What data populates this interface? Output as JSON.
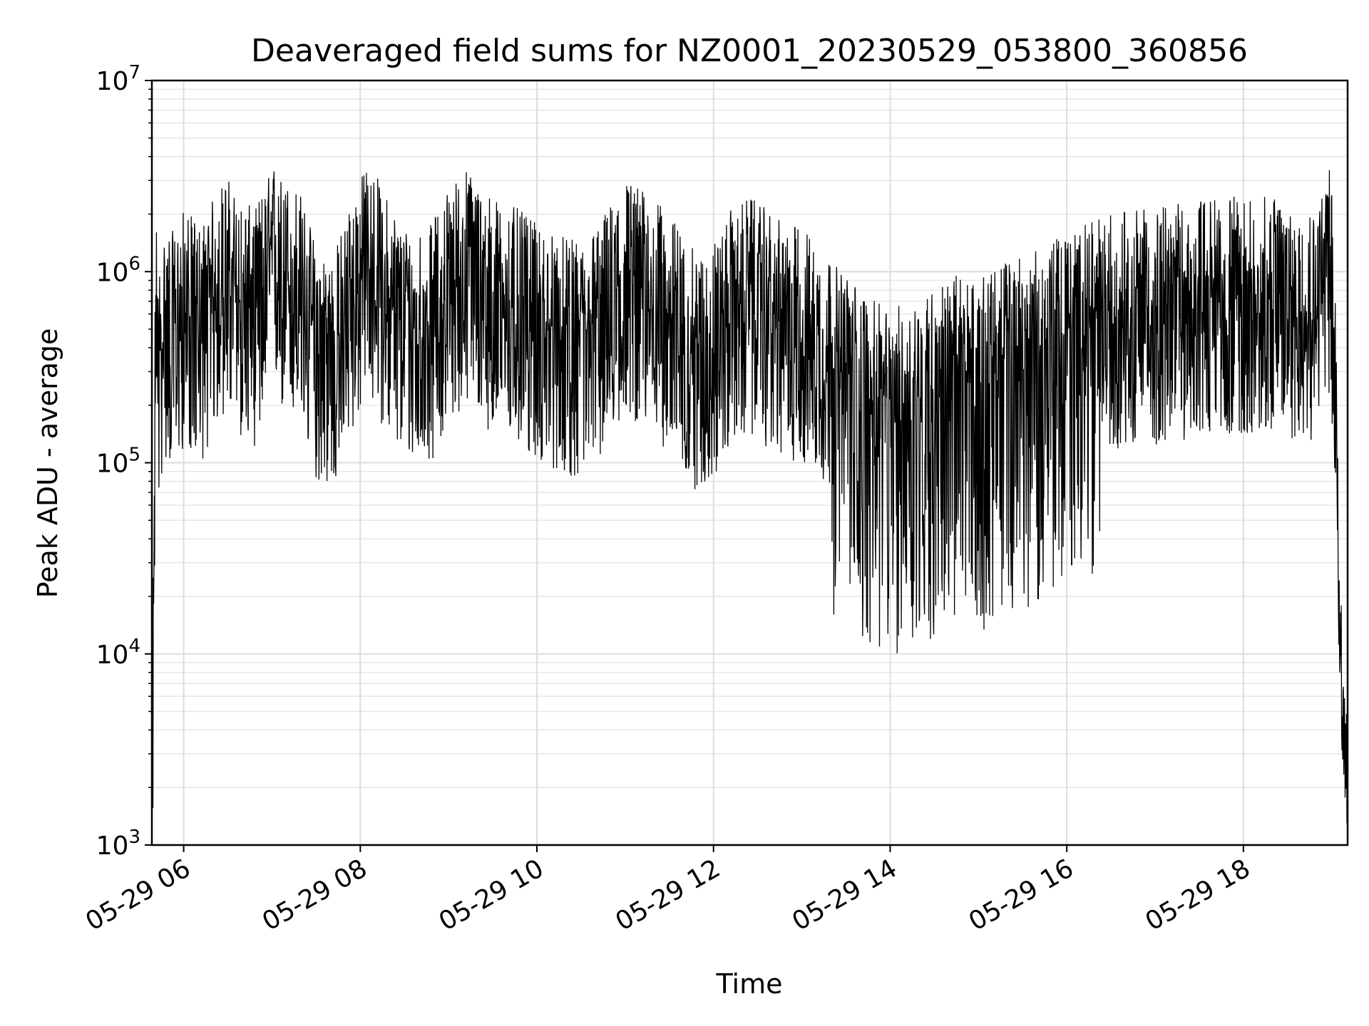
{
  "chart_data": {
    "type": "line",
    "title": "Deaveraged field sums for NZ0001_20230529_053800_360856",
    "xlabel": "Time",
    "ylabel": "Peak ADU - average",
    "x_tick_labels": [
      "05-29 06",
      "05-29 08",
      "05-29 10",
      "05-29 12",
      "05-29 14",
      "05-29 16",
      "05-29 18"
    ],
    "x_tick_hours": [
      6,
      8,
      10,
      12,
      14,
      16,
      18
    ],
    "xlim_hours": [
      5.64,
      19.18
    ],
    "y_scale": "log",
    "ylim": [
      1000,
      10000000
    ],
    "y_tick_labels": [
      {
        "base": "10",
        "exp": "3"
      },
      {
        "base": "10",
        "exp": "4"
      },
      {
        "base": "10",
        "exp": "5"
      },
      {
        "base": "10",
        "exp": "6"
      },
      {
        "base": "10",
        "exp": "7"
      }
    ],
    "grid": true,
    "line_color": "#000000",
    "series": [
      {
        "x_hours": [
          5.64,
          5.66,
          5.68,
          5.7,
          5.72,
          5.75,
          5.8,
          5.9,
          6.0,
          6.2,
          6.4,
          6.5,
          6.6,
          6.8,
          7.0,
          7.05,
          7.1,
          7.3,
          7.5,
          7.7,
          7.9,
          8.1,
          8.3,
          8.5,
          8.8,
          9.0,
          9.2,
          9.5,
          9.8,
          10.0,
          10.2,
          10.5,
          10.8,
          11.0,
          11.3,
          11.6,
          11.8,
          12.0,
          12.2,
          12.4,
          12.6,
          12.8,
          13.0,
          13.2,
          13.4,
          13.6,
          13.8,
          14.0,
          14.2,
          14.4,
          14.6,
          14.8,
          15.0,
          15.2,
          15.4,
          15.6,
          15.8,
          16.0,
          16.2,
          16.4,
          16.6,
          16.8,
          17.0,
          17.2,
          17.4,
          17.6,
          17.8,
          18.0,
          18.2,
          18.4,
          18.6,
          18.8,
          18.9,
          18.95,
          19.0,
          19.05,
          19.08,
          19.12,
          19.15,
          19.18
        ],
        "y": [
          2600,
          12000,
          450000,
          600000,
          300000,
          400000,
          500000,
          450000,
          600000,
          500000,
          800000,
          900000,
          700000,
          600000,
          1000000,
          1200000,
          900000,
          800000,
          400000,
          350000,
          700000,
          1100000,
          700000,
          500000,
          500000,
          800000,
          1000000,
          700000,
          600000,
          500000,
          450000,
          400000,
          600000,
          900000,
          700000,
          500000,
          350000,
          400000,
          600000,
          700000,
          600000,
          500000,
          500000,
          400000,
          300000,
          250000,
          200000,
          180000,
          200000,
          220000,
          250000,
          280000,
          250000,
          300000,
          350000,
          350000,
          400000,
          450000,
          500000,
          550000,
          600000,
          600000,
          600000,
          650000,
          650000,
          700000,
          700000,
          700000,
          700000,
          700000,
          650000,
          650000,
          900000,
          1200000,
          800000,
          300000,
          20000,
          5000,
          4000,
          2500
        ]
      }
    ]
  }
}
